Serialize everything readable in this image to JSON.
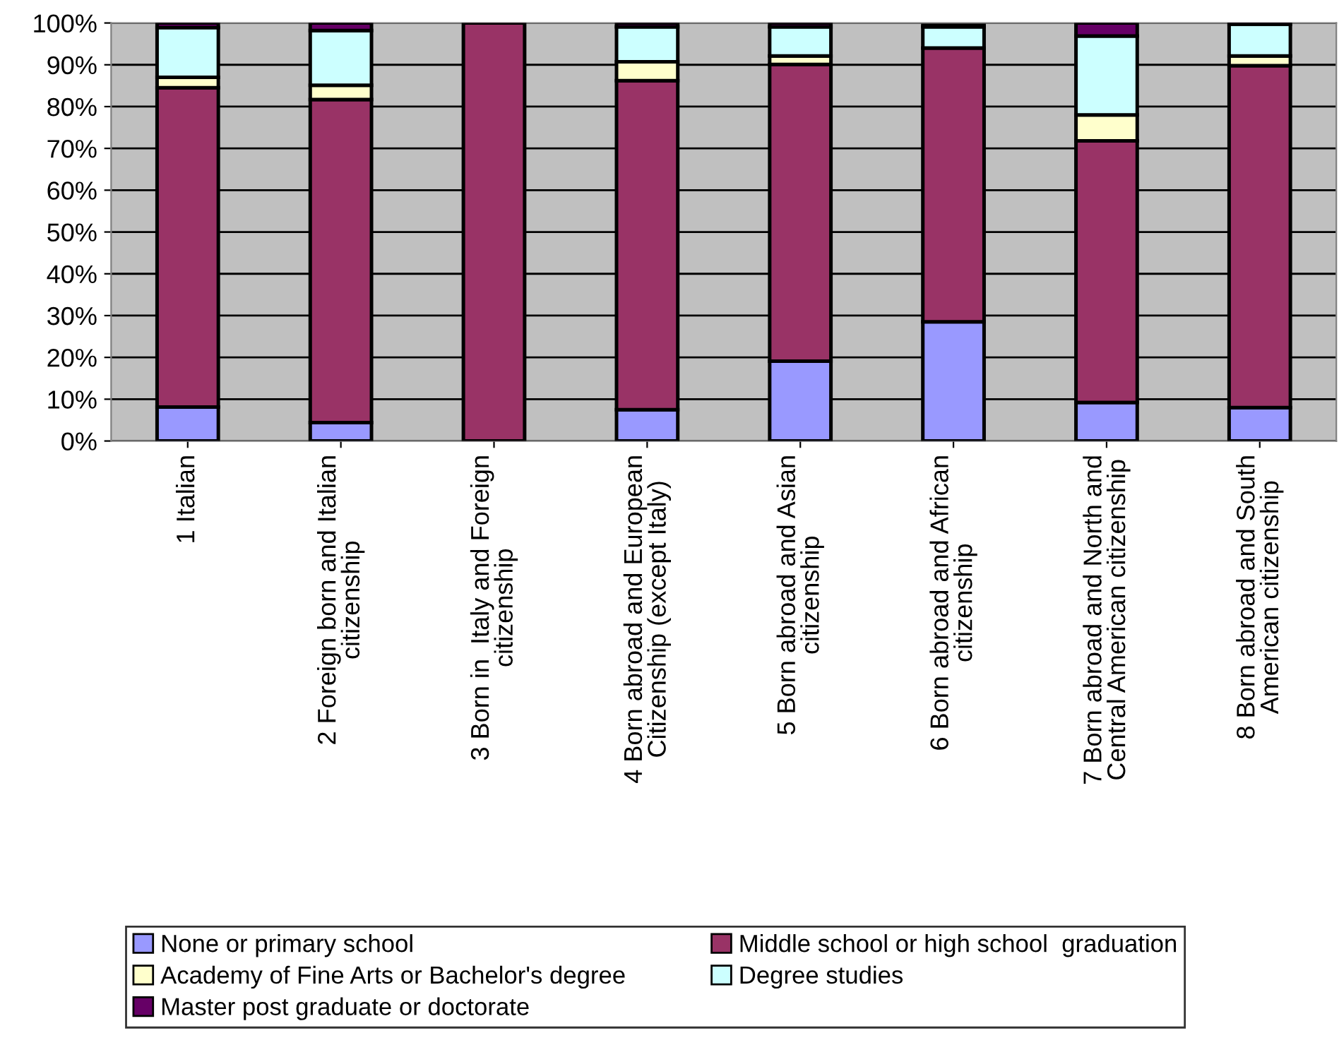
{
  "chart_data": {
    "type": "bar",
    "stacked": true,
    "categories": [
      "1 Italian",
      "2 Foreign born and Italian\ncitizenship",
      "3 Born in  Italy and Foreign\ncitizenship",
      "4 Born abroad and European\nCitizenship (except Italy)",
      "5 Born abroad and Asian\ncitizenship",
      "6 Born abroad and African\ncitizenship",
      "7 Born abroad and North and\nCentral American citizenship",
      "8 Born abroad and South\nAmerican citizenship"
    ],
    "series": [
      {
        "name": "None or primary school",
        "color": "#9999ff",
        "values": [
          8.1,
          4.4,
          0,
          7.5,
          19.1,
          28.5,
          9.2,
          8.0
        ]
      },
      {
        "name": "Middle school or high school  graduation",
        "color": "#993366",
        "values": [
          76.4,
          77.3,
          100,
          78.7,
          71.0,
          65.5,
          62.6,
          81.8
        ]
      },
      {
        "name": "Academy of Fine Arts or Bachelor's degree",
        "color": "#ffffcc",
        "values": [
          2.5,
          3.4,
          0,
          4.5,
          2.0,
          null,
          6.2,
          2.3
        ]
      },
      {
        "name": "Degree studies",
        "color": "#ccffff",
        "values": [
          11.9,
          13.1,
          0,
          8.4,
          7.0,
          5.1,
          18.9,
          7.6
        ]
      },
      {
        "name": "Master post graduate or doctorate",
        "color": "#660066",
        "values": [
          1.1,
          1.8,
          0,
          0.9,
          0.9,
          0.3,
          3.1,
          0.3
        ]
      }
    ],
    "ylim": [
      0,
      100
    ],
    "yticks": [
      {
        "value": 0,
        "label": "0%"
      },
      {
        "value": 10,
        "label": "10%"
      },
      {
        "value": 20,
        "label": "20%"
      },
      {
        "value": 30,
        "label": "30%"
      },
      {
        "value": 40,
        "label": "40%"
      },
      {
        "value": 50,
        "label": "50%"
      },
      {
        "value": 60,
        "label": "60%"
      },
      {
        "value": 70,
        "label": "70%"
      },
      {
        "value": 80,
        "label": "80%"
      },
      {
        "value": 90,
        "label": "90%"
      },
      {
        "value": 100,
        "label": "100%"
      }
    ],
    "grid": "y",
    "legend": "bottom"
  }
}
